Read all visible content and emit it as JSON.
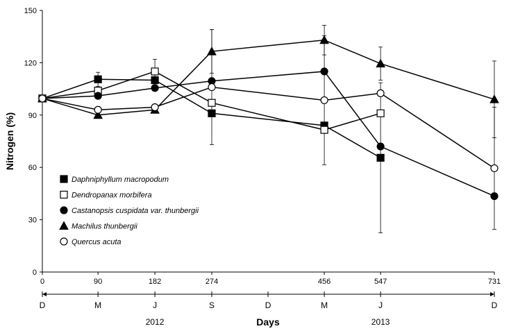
{
  "chart_data": {
    "type": "line",
    "ylabel": "Nitrogen (%)",
    "xlabel": "Days",
    "ylim": [
      0,
      150
    ],
    "yticks": [
      0,
      30,
      60,
      90,
      120,
      150
    ],
    "x": [
      0,
      90,
      182,
      274,
      456,
      547,
      731
    ],
    "xlim": [
      0,
      731
    ],
    "months": [
      {
        "day": 0,
        "label": "D"
      },
      {
        "day": 90,
        "label": "M"
      },
      {
        "day": 182,
        "label": "J"
      },
      {
        "day": 274,
        "label": "S"
      },
      {
        "day": 365,
        "label": "D"
      },
      {
        "day": 456,
        "label": "M"
      },
      {
        "day": 547,
        "label": "J"
      },
      {
        "day": 731,
        "label": "D"
      }
    ],
    "years": [
      {
        "day": 182,
        "label": "2012"
      },
      {
        "day": 547,
        "label": "2013"
      }
    ],
    "legend_position": "left",
    "series": [
      {
        "name": "Daphniphyllum macropodum",
        "marker": "square-filled",
        "x": [
          0,
          90,
          182,
          274,
          456,
          547
        ],
        "values": [
          99.5,
          110.5,
          110,
          91,
          84,
          65.5
        ],
        "errors": [
          0,
          4,
          5,
          0,
          0,
          43
        ]
      },
      {
        "name": "Dendropanax morbifera",
        "marker": "square-open",
        "x": [
          0,
          90,
          182,
          274,
          456,
          547
        ],
        "values": [
          99.5,
          104,
          115,
          97,
          81.5,
          91
        ],
        "errors": [
          0,
          0,
          7,
          0,
          0,
          0
        ]
      },
      {
        "name": "Castanopsis cuspidata var. thunbergii",
        "marker": "circle-filled",
        "x": [
          0,
          90,
          182,
          274,
          456,
          547,
          731
        ],
        "values": [
          99.5,
          101,
          105.5,
          109.5,
          115,
          72,
          43.5
        ],
        "errors": [
          0,
          0,
          0,
          0,
          0,
          0,
          0
        ]
      },
      {
        "name": "Machilus thunbergii",
        "marker": "triangle-filled",
        "x": [
          0,
          90,
          182,
          274,
          456,
          547,
          731
        ],
        "values": [
          99.5,
          90,
          93,
          126.5,
          133,
          119.5,
          99
        ],
        "errors": [
          0,
          0,
          0,
          12.5,
          8.5,
          9.5,
          22
        ]
      },
      {
        "name": "Quercus acuta",
        "marker": "circle-open",
        "x": [
          0,
          90,
          182,
          274,
          456,
          547,
          731
        ],
        "values": [
          99.5,
          93,
          94.5,
          106,
          98.5,
          102.5,
          59.5
        ],
        "errors": [
          0,
          0,
          0,
          33,
          37,
          0,
          35
        ]
      }
    ]
  }
}
